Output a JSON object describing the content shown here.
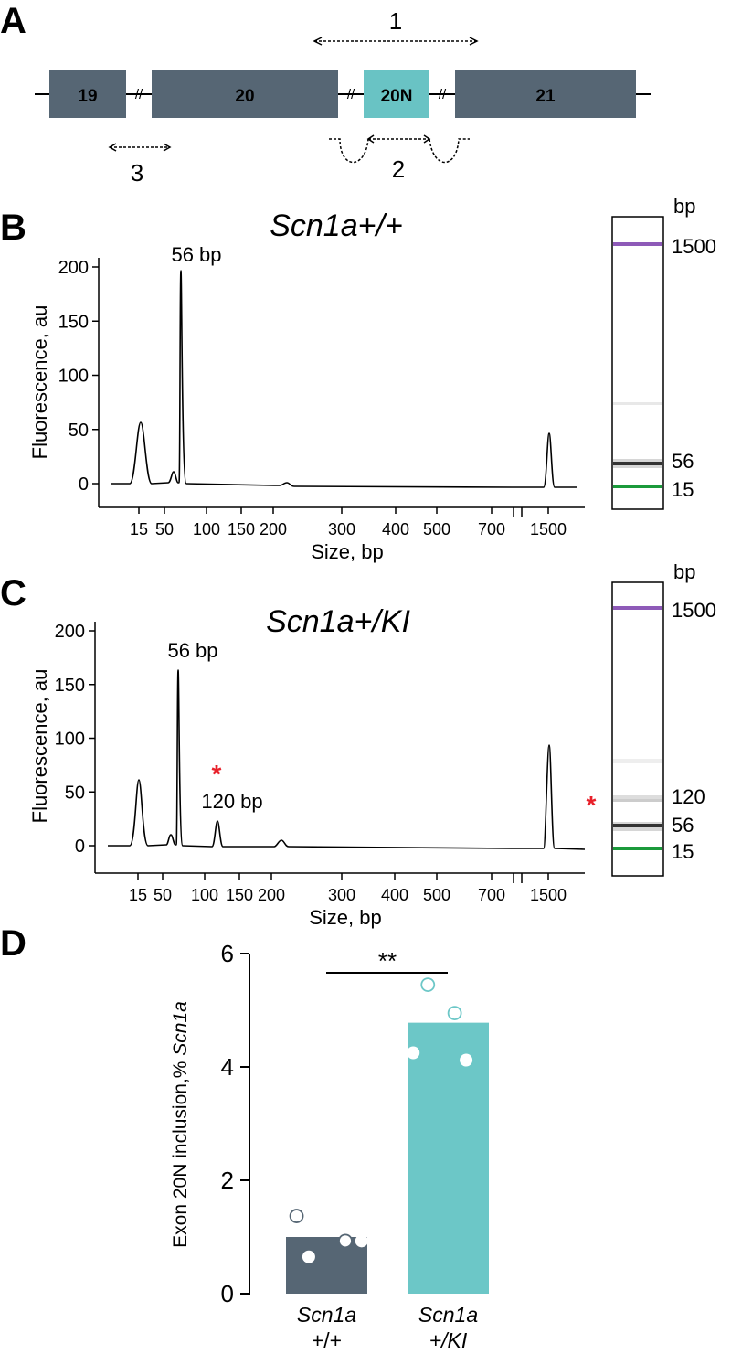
{
  "panel_labels": {
    "a": "A",
    "b": "B",
    "c": "C",
    "d": "D"
  },
  "colors": {
    "exon_dark": "#566674",
    "exon_teal": "#69C3C4",
    "bar_dark": "#566674",
    "bar_teal": "#6CC7C7",
    "ladder_upper": "#8E5AB8",
    "ladder_lower": "#1B9A3B",
    "band_dark": "#333333",
    "asterisk": "#E8202A",
    "line": "#000000"
  },
  "panel_a": {
    "exons": [
      {
        "label": "19",
        "color_key": "exon_dark"
      },
      {
        "label": "20",
        "color_key": "exon_dark"
      },
      {
        "label": "20N",
        "color_key": "exon_teal"
      },
      {
        "label": "21",
        "color_key": "exon_dark"
      }
    ],
    "primers": [
      {
        "label": "1"
      },
      {
        "label": "2"
      },
      {
        "label": "3"
      }
    ],
    "break_symbol": "//"
  },
  "chart_data": [
    {
      "type": "line",
      "id": "B",
      "title": "Scn1a+/+",
      "xlabel": "Size, bp",
      "ylabel": "Fluorescence, au",
      "ylim": [
        0,
        200
      ],
      "yticks": [
        0,
        50,
        100,
        150,
        200
      ],
      "xtick_labels": [
        "15",
        "50",
        "100",
        "150",
        "200",
        "300",
        "400",
        "500",
        "700",
        "1500"
      ],
      "peaks": [
        {
          "size": "15",
          "height": 57
        },
        {
          "size": "50",
          "height": 10
        },
        {
          "size": "56",
          "height": 198,
          "label": "56 bp"
        },
        {
          "size": "1500",
          "height": 47
        }
      ],
      "gel": {
        "unit_label": "bp",
        "band_labels": [
          "1500",
          "56",
          "15"
        ]
      }
    },
    {
      "type": "line",
      "id": "C",
      "title": "Scn1a+/KI",
      "xlabel": "Size, bp",
      "ylabel": "Fluorescence, au",
      "ylim": [
        0,
        200
      ],
      "yticks": [
        0,
        50,
        100,
        150,
        200
      ],
      "xtick_labels": [
        "15",
        "50",
        "100",
        "150",
        "200",
        "300",
        "400",
        "500",
        "700",
        "1500"
      ],
      "peaks": [
        {
          "size": "15",
          "height": 61
        },
        {
          "size": "50",
          "height": 10
        },
        {
          "size": "56",
          "height": 165,
          "label": "56 bp"
        },
        {
          "size": "120",
          "height": 22,
          "label": "120 bp"
        },
        {
          "size": "200",
          "height": 5
        },
        {
          "size": "1500",
          "height": 95
        }
      ],
      "asterisk": "*",
      "gel": {
        "unit_label": "bp",
        "band_labels": [
          "1500",
          "120",
          "56",
          "15"
        ],
        "asterisk": "*"
      }
    },
    {
      "type": "bar",
      "id": "D",
      "ylabel_main": "Exon 20N inclusion,% ",
      "ylabel_italic": "Scn1a",
      "ylim": [
        0,
        6
      ],
      "yticks": [
        0,
        2,
        4,
        6
      ],
      "significance": "**",
      "categories": [
        {
          "line1": "Scn1a",
          "line2": "+/+",
          "color_key": "bar_dark"
        },
        {
          "line1": "Scn1a",
          "line2": "+/KI",
          "color_key": "bar_teal"
        }
      ],
      "values": [
        1.0,
        4.78
      ],
      "points": [
        [
          [
            0.93,
            0.93,
            0
          ],
          [
            1.37,
            0.13,
            1
          ],
          [
            0.93,
            0.73,
            1
          ],
          [
            0.65,
            0.28,
            0
          ]
        ],
        [
          [
            4.25,
            0.07,
            0
          ],
          [
            5.45,
            0.25,
            1
          ],
          [
            4.95,
            0.58,
            1
          ],
          [
            4.12,
            0.72,
            0
          ]
        ]
      ]
    }
  ]
}
